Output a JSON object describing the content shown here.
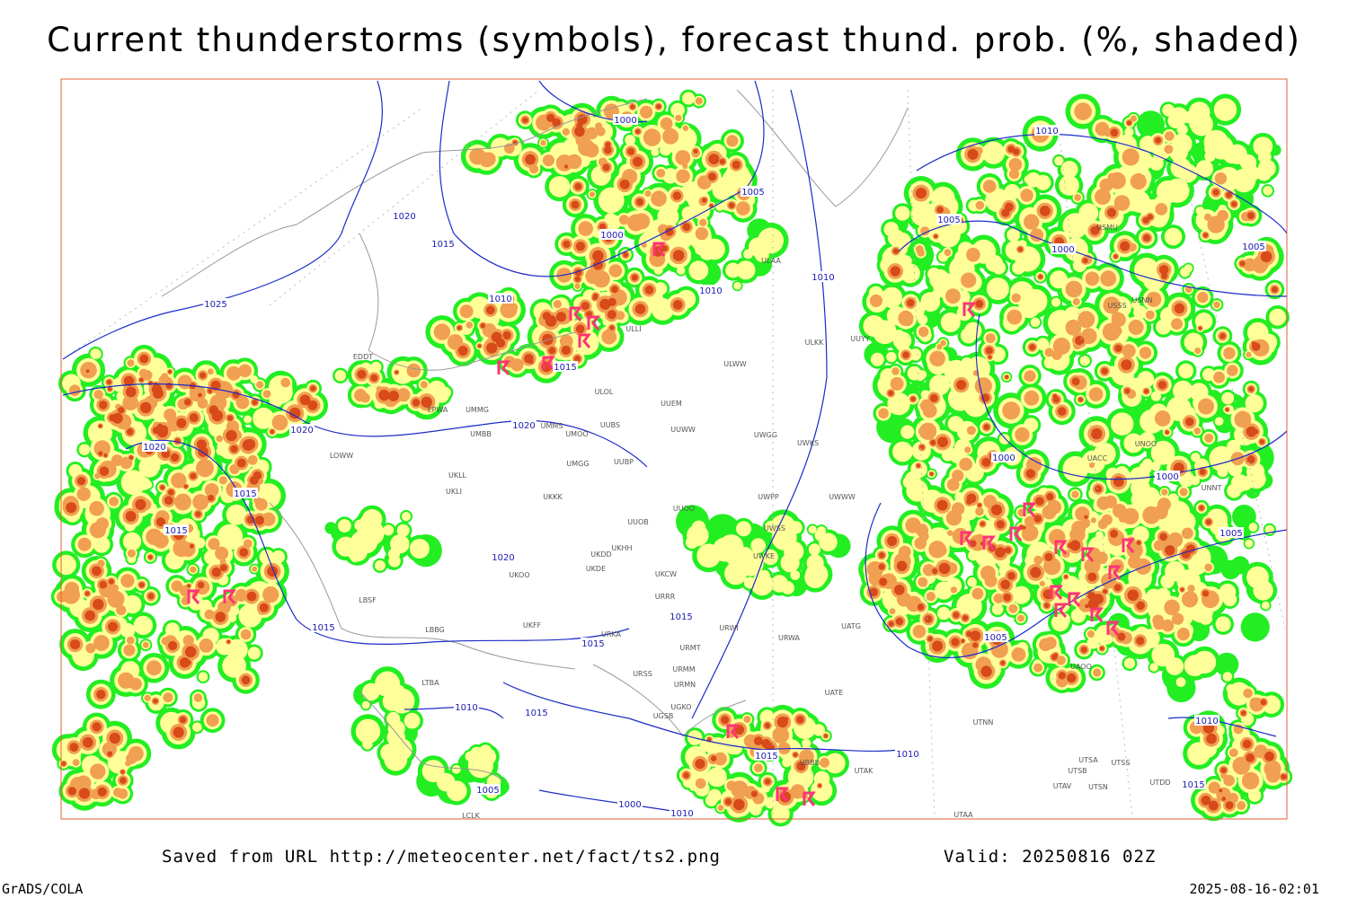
{
  "title": "Current thunderstorms (symbols), forecast thund. prob. (%, shaded)",
  "footer": {
    "source": "Saved from URL http://meteocenter.net/fact/ts2.png",
    "valid": "Valid: 20250816 02Z",
    "software": "GrADS/COLA",
    "timestamp": "2025-08-16-02:01"
  },
  "isobar_labels": [
    "1000",
    "1010",
    "1005",
    "1020",
    "1015",
    "1000",
    "1005",
    "1000",
    "1005",
    "1010",
    "1010",
    "1010",
    "1025",
    "1015",
    "1020",
    "1020",
    "1020",
    "1000",
    "1000",
    "1015",
    "1015",
    "1005",
    "1020",
    "1015",
    "1015",
    "1015",
    "1005",
    "1010",
    "1015",
    "1010",
    "1015",
    "1010",
    "1005",
    "1015",
    "1000",
    "1010"
  ],
  "stations": [
    "EDDT",
    "EPWA",
    "UMMG",
    "UMMS",
    "UMBB",
    "UMOO",
    "UUBS",
    "UUEM",
    "UUWW",
    "ULOL",
    "UMGG",
    "UUBP",
    "UKLL",
    "UKLI",
    "UKKK",
    "UUOO",
    "UUOB",
    "UKHH",
    "UKDD",
    "UKDE",
    "UKOO",
    "UKCW",
    "URRR",
    "UKFF",
    "URKA",
    "URMT",
    "URMM",
    "URSS",
    "URMN",
    "UGKO",
    "UGSB",
    "URWI",
    "URWA",
    "LBBG",
    "LTBA",
    "UWGG",
    "UWKS",
    "UWPP",
    "UWSS",
    "UWWW",
    "UWKE",
    "ULWW",
    "ULAA",
    "ULLI",
    "ULKK",
    "UUYY",
    "UATG",
    "UATE",
    "UTAK",
    "UTNN",
    "UTSA",
    "UTSB",
    "UTSS",
    "UTAV",
    "UTSN",
    "UTDD",
    "UAOO",
    "UACC",
    "UNOO",
    "UNNT",
    "USMU",
    "USNN",
    "USSS",
    "UTAA",
    "LCLK",
    "UBBB",
    "LOWW",
    "LBSF"
  ]
}
